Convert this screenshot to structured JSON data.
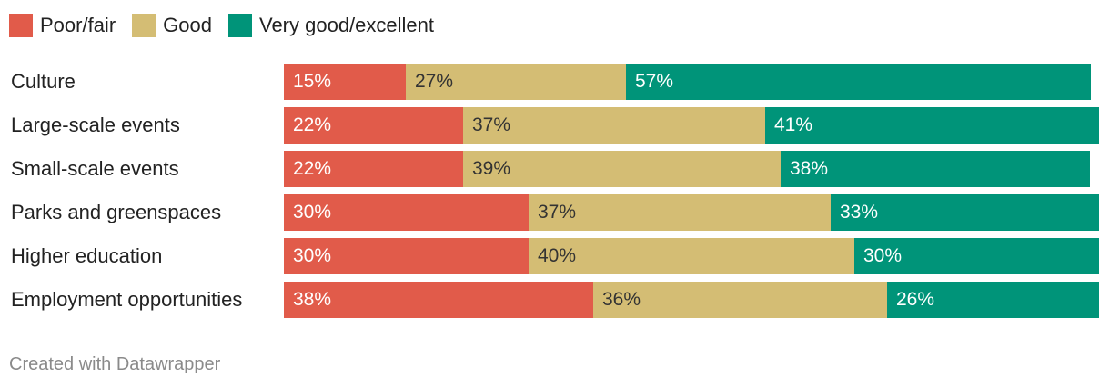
{
  "chart_data": {
    "type": "bar",
    "orientation": "horizontal",
    "stacked": true,
    "categories": [
      "Culture",
      "Large-scale events",
      "Small-scale events",
      "Parks and greenspaces",
      "Higher education",
      "Employment opportunities"
    ],
    "series": [
      {
        "name": "Poor/fair",
        "color": "#e15b4a",
        "values": [
          15,
          22,
          22,
          30,
          30,
          38
        ]
      },
      {
        "name": "Good",
        "color": "#d4bd74",
        "values": [
          27,
          37,
          39,
          37,
          40,
          36
        ]
      },
      {
        "name": "Very good/excellent",
        "color": "#009479",
        "values": [
          57,
          41,
          38,
          33,
          30,
          26
        ]
      }
    ],
    "value_suffix": "%",
    "legend_position": "top-left",
    "grid": false
  },
  "footer": {
    "credit": "Created with Datawrapper"
  }
}
